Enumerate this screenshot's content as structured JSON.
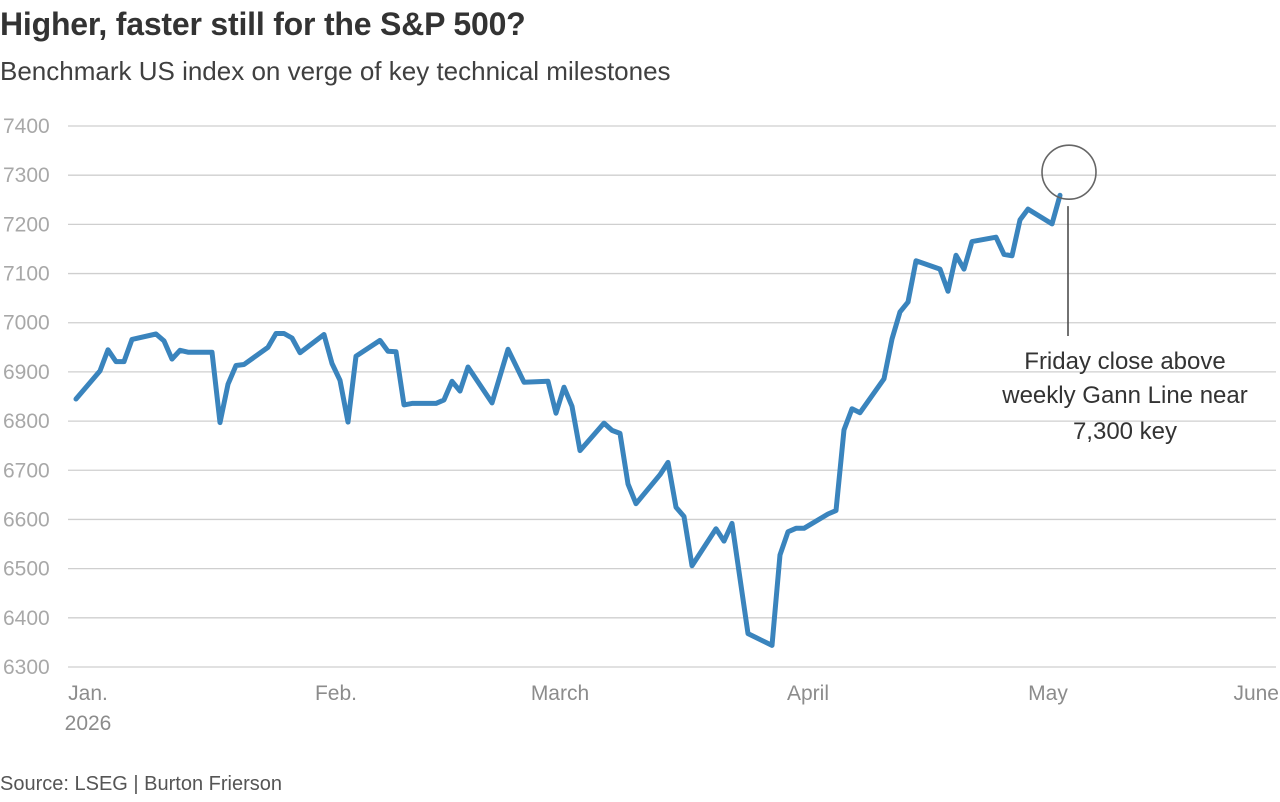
{
  "header": {
    "title": "Higher, faster still for the S&P 500?",
    "subtitle": "Benchmark US index on verge of key technical milestones"
  },
  "footer": {
    "source": "Source: LSEG | Burton Frierson"
  },
  "chart_data": {
    "type": "line",
    "title": "Higher, faster still for the S&P 500?",
    "subtitle": "Benchmark US index on verge of key technical milestones",
    "xlabel": "",
    "ylabel": "",
    "x_range": [
      "2026-01-01",
      "2026-06-01"
    ],
    "ylim": [
      6300,
      7400
    ],
    "y_ticks": [
      6300,
      6400,
      6500,
      6600,
      6700,
      6800,
      6900,
      7000,
      7100,
      7200,
      7300,
      7400
    ],
    "x_ticks": [
      {
        "date": "2026-01-01",
        "label": "Jan.",
        "sublabel": "2026"
      },
      {
        "date": "2026-02-01",
        "label": "Feb."
      },
      {
        "date": "2026-03-01",
        "label": "March"
      },
      {
        "date": "2026-04-01",
        "label": "April"
      },
      {
        "date": "2026-05-01",
        "label": "May"
      },
      {
        "date": "2026-06-01",
        "label": "June"
      }
    ],
    "grid": true,
    "line_color": "#3a84bd",
    "series": [
      {
        "points": [
          [
            "2026-01-02",
            6845
          ],
          [
            "2026-01-05",
            6902
          ],
          [
            "2026-01-06",
            6945
          ],
          [
            "2026-01-07",
            6921
          ],
          [
            "2026-01-08",
            6921
          ],
          [
            "2026-01-09",
            6966
          ],
          [
            "2026-01-12",
            6977
          ],
          [
            "2026-01-13",
            6963
          ],
          [
            "2026-01-14",
            6926
          ],
          [
            "2026-01-15",
            6944
          ],
          [
            "2026-01-16",
            6940
          ],
          [
            "2026-01-19",
            6940
          ],
          [
            "2026-01-20",
            6797
          ],
          [
            "2026-01-21",
            6875
          ],
          [
            "2026-01-22",
            6913
          ],
          [
            "2026-01-23",
            6915
          ],
          [
            "2026-01-26",
            6950
          ],
          [
            "2026-01-27",
            6978
          ],
          [
            "2026-01-28",
            6978
          ],
          [
            "2026-01-29",
            6969
          ],
          [
            "2026-01-30",
            6939
          ],
          [
            "2026-02-02",
            6976
          ],
          [
            "2026-02-03",
            6917
          ],
          [
            "2026-02-04",
            6883
          ],
          [
            "2026-02-05",
            6798
          ],
          [
            "2026-02-06",
            6932
          ],
          [
            "2026-02-09",
            6964
          ],
          [
            "2026-02-10",
            6942
          ],
          [
            "2026-02-11",
            6941
          ],
          [
            "2026-02-12",
            6833
          ],
          [
            "2026-02-13",
            6836
          ],
          [
            "2026-02-16",
            6836
          ],
          [
            "2026-02-17",
            6843
          ],
          [
            "2026-02-18",
            6881
          ],
          [
            "2026-02-19",
            6861
          ],
          [
            "2026-02-20",
            6910
          ],
          [
            "2026-02-23",
            6837
          ],
          [
            "2026-02-25",
            6946
          ],
          [
            "2026-02-27",
            6879
          ],
          [
            "2026-03-02",
            6881
          ],
          [
            "2026-03-03",
            6816
          ],
          [
            "2026-03-04",
            6869
          ],
          [
            "2026-03-05",
            6830
          ],
          [
            "2026-03-06",
            6740
          ],
          [
            "2026-03-09",
            6796
          ],
          [
            "2026-03-10",
            6781
          ],
          [
            "2026-03-11",
            6775
          ],
          [
            "2026-03-12",
            6672
          ],
          [
            "2026-03-13",
            6632
          ],
          [
            "2026-03-16",
            6691
          ],
          [
            "2026-03-17",
            6716
          ],
          [
            "2026-03-18",
            6625
          ],
          [
            "2026-03-19",
            6606
          ],
          [
            "2026-03-20",
            6506
          ],
          [
            "2026-03-23",
            6581
          ],
          [
            "2026-03-24",
            6556
          ],
          [
            "2026-03-25",
            6592
          ],
          [
            "2026-03-27",
            6368
          ],
          [
            "2026-03-30",
            6344
          ],
          [
            "2026-03-31",
            6528
          ],
          [
            "2026-04-01",
            6575
          ],
          [
            "2026-04-02",
            6582
          ],
          [
            "2026-04-03",
            6582
          ],
          [
            "2026-04-06",
            6611
          ],
          [
            "2026-04-07",
            6618
          ],
          [
            "2026-04-08",
            6782
          ],
          [
            "2026-04-09",
            6825
          ],
          [
            "2026-04-10",
            6817
          ],
          [
            "2026-04-13",
            6886
          ],
          [
            "2026-04-14",
            6967
          ],
          [
            "2026-04-15",
            7022
          ],
          [
            "2026-04-16",
            7042
          ],
          [
            "2026-04-17",
            7126
          ],
          [
            "2026-04-20",
            7109
          ],
          [
            "2026-04-21",
            7064
          ],
          [
            "2026-04-22",
            7137
          ],
          [
            "2026-04-23",
            7109
          ],
          [
            "2026-04-24",
            7165
          ],
          [
            "2026-04-27",
            7174
          ],
          [
            "2026-04-28",
            7139
          ],
          [
            "2026-04-29",
            7136
          ],
          [
            "2026-04-30",
            7209
          ],
          [
            "2026-05-01",
            7231
          ],
          [
            "2026-05-04",
            7201
          ],
          [
            "2026-05-05",
            7259
          ]
        ]
      }
    ],
    "annotation": {
      "text_lines": [
        "Friday close above",
        "weekly Gann Line near",
        "7,300 key"
      ],
      "target_date": "2026-05-05",
      "target_value": 7300
    }
  }
}
